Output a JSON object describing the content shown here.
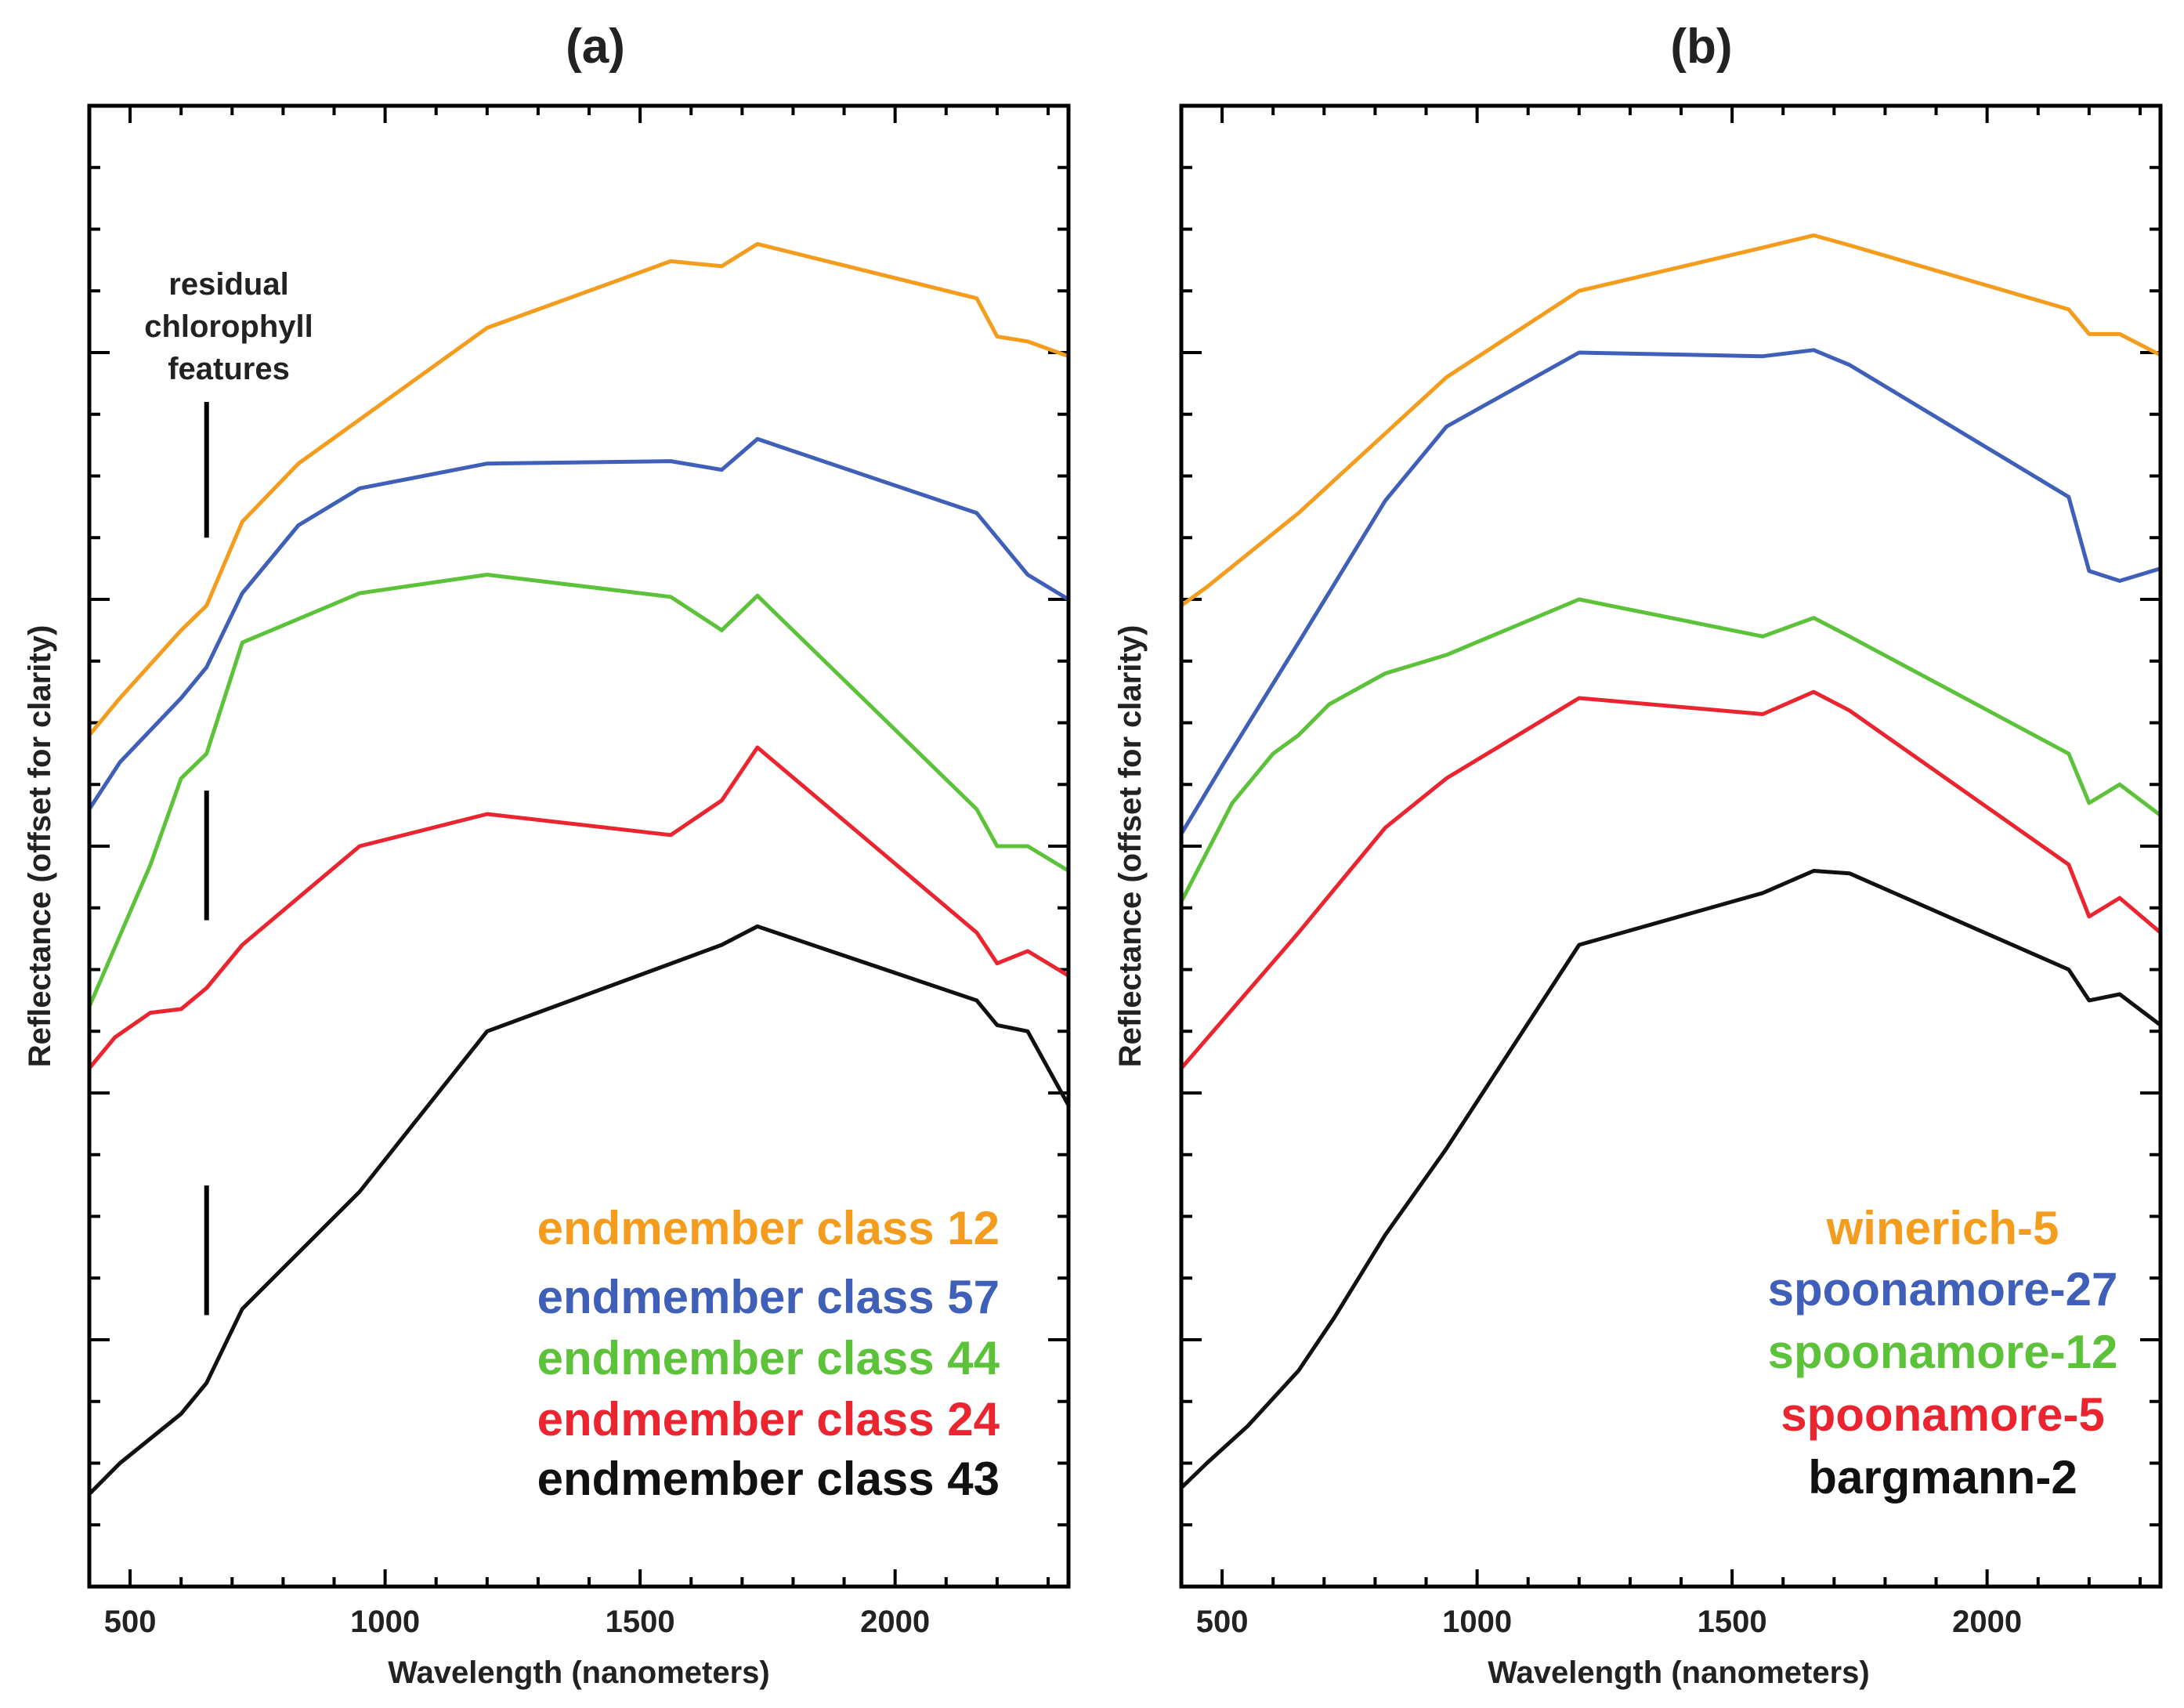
{
  "chart_data": [
    {
      "type": "line",
      "title": "(a)",
      "xlabel": "Wavelength (nanometers)",
      "ylabel": "Reflectance (offset for clarity)",
      "xlim": [
        420,
        2340
      ],
      "ylim": [
        0,
        1.2
      ],
      "xticks": [
        500,
        1000,
        1500,
        2000
      ],
      "legend_position": "bottom-right",
      "annotation": {
        "lines": [
          "residual",
          "chlorophyll",
          "features"
        ],
        "x": 650,
        "marker_ranges": [
          [
            0.85,
            0.96
          ],
          [
            0.54,
            0.645
          ],
          [
            0.22,
            0.325
          ]
        ]
      },
      "series": [
        {
          "name": "endmember class 12",
          "color": "#f39c1e",
          "x": [
            420,
            480,
            600,
            650,
            720,
            830,
            1200,
            1560,
            1660,
            1730,
            2160,
            2200,
            2260,
            2340
          ],
          "values": [
            0.69,
            0.72,
            0.775,
            0.795,
            0.863,
            0.91,
            1.02,
            1.074,
            1.07,
            1.088,
            1.044,
            1.013,
            1.009,
            0.997
          ]
        },
        {
          "name": "endmember class 57",
          "color": "#3f5fb8",
          "x": [
            420,
            480,
            600,
            650,
            720,
            830,
            950,
            1200,
            1560,
            1660,
            1730,
            2160,
            2200,
            2260,
            2340
          ],
          "values": [
            0.63,
            0.668,
            0.72,
            0.745,
            0.805,
            0.86,
            0.89,
            0.91,
            0.912,
            0.905,
            0.93,
            0.87,
            0.85,
            0.82,
            0.8
          ]
        },
        {
          "name": "endmember class 44",
          "color": "#5cc23a",
          "x": [
            420,
            540,
            600,
            650,
            720,
            950,
            1200,
            1560,
            1660,
            1730,
            2160,
            2200,
            2260,
            2340
          ],
          "values": [
            0.47,
            0.585,
            0.655,
            0.675,
            0.765,
            0.805,
            0.82,
            0.802,
            0.775,
            0.803,
            0.63,
            0.6,
            0.6,
            0.58
          ]
        },
        {
          "name": "endmember class 24",
          "color": "#ea2530",
          "x": [
            420,
            470,
            540,
            600,
            650,
            720,
            950,
            1200,
            1560,
            1660,
            1730,
            2160,
            2200,
            2260,
            2340
          ],
          "values": [
            0.42,
            0.445,
            0.465,
            0.468,
            0.485,
            0.52,
            0.6,
            0.626,
            0.609,
            0.637,
            0.68,
            0.53,
            0.505,
            0.515,
            0.495
          ]
        },
        {
          "name": "endmember class 43",
          "color": "#111111",
          "x": [
            420,
            480,
            600,
            650,
            720,
            950,
            1200,
            1660,
            1730,
            2160,
            2200,
            2260,
            2340
          ],
          "values": [
            0.075,
            0.1,
            0.14,
            0.165,
            0.225,
            0.32,
            0.45,
            0.52,
            0.535,
            0.475,
            0.455,
            0.45,
            0.39
          ]
        }
      ]
    },
    {
      "type": "line",
      "title": "(b)",
      "xlabel": "Wavelength (nanometers)",
      "ylabel": "Reflectance (offset for clarity)",
      "xlim": [
        420,
        2340
      ],
      "ylim": [
        0,
        1.2
      ],
      "xticks": [
        500,
        1000,
        1500,
        2000
      ],
      "legend_position": "bottom-right",
      "series": [
        {
          "name": "winerich-5",
          "color": "#f39c1e",
          "x": [
            420,
            470,
            650,
            940,
            1200,
            1560,
            1660,
            1730,
            2160,
            2200,
            2260,
            2340
          ],
          "values": [
            0.795,
            0.81,
            0.87,
            0.98,
            1.05,
            1.085,
            1.095,
            1.087,
            1.035,
            1.015,
            1.015,
            0.998
          ]
        },
        {
          "name": "spoonamore-27",
          "color": "#3f5fb8",
          "x": [
            420,
            500,
            650,
            820,
            940,
            1200,
            1560,
            1660,
            1730,
            2160,
            2200,
            2260,
            2340
          ],
          "values": [
            0.61,
            0.665,
            0.765,
            0.88,
            0.94,
            1.0,
            0.997,
            1.002,
            0.99,
            0.883,
            0.823,
            0.815,
            0.825
          ]
        },
        {
          "name": "spoonamore-12",
          "color": "#5cc23a",
          "x": [
            420,
            520,
            600,
            650,
            710,
            820,
            940,
            1200,
            1560,
            1660,
            1730,
            2160,
            2200,
            2260,
            2340
          ],
          "values": [
            0.555,
            0.635,
            0.675,
            0.69,
            0.715,
            0.74,
            0.755,
            0.8,
            0.77,
            0.785,
            0.77,
            0.675,
            0.635,
            0.65,
            0.625
          ]
        },
        {
          "name": "spoonamore-5",
          "color": "#ea2530",
          "x": [
            420,
            650,
            720,
            820,
            940,
            1200,
            1560,
            1660,
            1730,
            2160,
            2200,
            2260,
            2340
          ],
          "values": [
            0.42,
            0.53,
            0.565,
            0.615,
            0.655,
            0.72,
            0.707,
            0.725,
            0.71,
            0.585,
            0.543,
            0.558,
            0.53
          ]
        },
        {
          "name": "bargmann-2",
          "color": "#111111",
          "x": [
            420,
            470,
            550,
            650,
            720,
            820,
            940,
            1200,
            1560,
            1660,
            1730,
            2160,
            2200,
            2260,
            2340
          ],
          "values": [
            0.08,
            0.1,
            0.13,
            0.175,
            0.218,
            0.285,
            0.355,
            0.52,
            0.562,
            0.58,
            0.578,
            0.5,
            0.475,
            0.48,
            0.455
          ]
        }
      ]
    }
  ]
}
